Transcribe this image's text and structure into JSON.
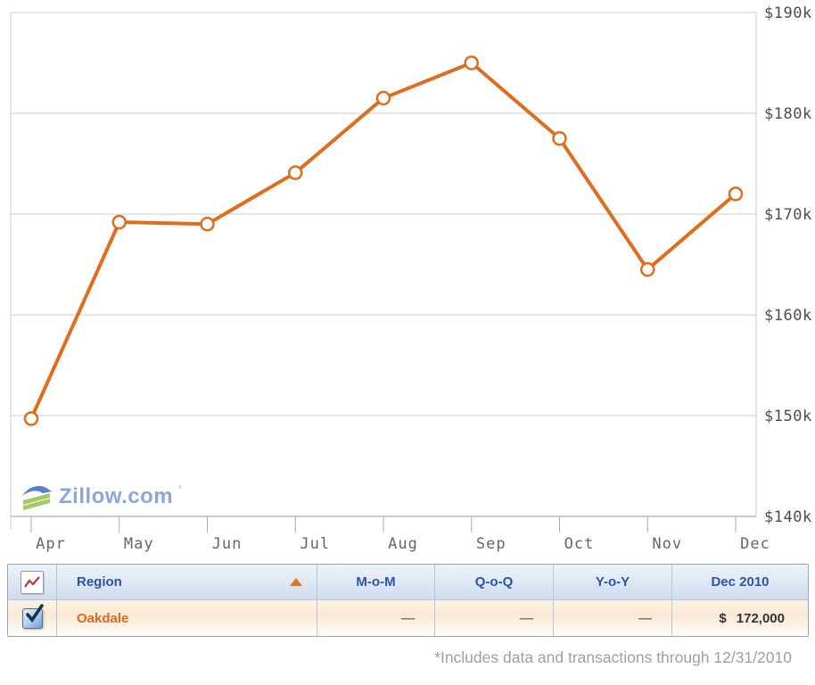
{
  "chart_data": {
    "type": "line",
    "title": "",
    "xlabel": "",
    "ylabel": "",
    "categories": [
      "Apr",
      "May",
      "Jun",
      "Jul",
      "Aug",
      "Sep",
      "Oct",
      "Nov",
      "Dec"
    ],
    "series": [
      {
        "name": "Oakdale",
        "color": "#e06c1c",
        "marker": "open-circle",
        "values": [
          149700,
          169200,
          169000,
          174100,
          181500,
          185000,
          177500,
          164500,
          172000
        ]
      }
    ],
    "ylim": [
      140000,
      190000
    ],
    "y_ticks": [
      {
        "value": 190000,
        "label": "$190k"
      },
      {
        "value": 180000,
        "label": "$180k"
      },
      {
        "value": 170000,
        "label": "$170k"
      },
      {
        "value": 160000,
        "label": "$160k"
      },
      {
        "value": 150000,
        "label": "$150k"
      },
      {
        "value": 140000,
        "label": "$140k"
      }
    ],
    "grid": true,
    "legend_position": "none",
    "y_axis_side": "right"
  },
  "logo": {
    "text": "Zillow.com",
    "trademark": "’"
  },
  "table": {
    "columns": [
      "Region",
      "M-o-M",
      "Q-o-Q",
      "Y-o-Y",
      "Dec 2010"
    ],
    "sort": {
      "column": "Region",
      "direction": "ascending"
    },
    "rows": [
      {
        "checked": true,
        "region": "Oakdale",
        "mom": "—",
        "qoq": "—",
        "yoy": "—",
        "dec_currency": "$",
        "dec_amount": "172,000"
      }
    ]
  },
  "footnote": "*Includes data and transactions through 12/31/2010",
  "colors": {
    "line": "#e06c1c",
    "grid": "#cccccc",
    "axis_bottom": "#999999",
    "tick": "#aaaaaa",
    "y_label_text": "#4d4d4d",
    "x_label_text": "#666666",
    "header_text": "#2a56a8",
    "region_text": "#e2671c",
    "sort_triangle": "#e2721c",
    "logo_text": "#8da5d8",
    "footnote_text": "#9f9f9f"
  }
}
